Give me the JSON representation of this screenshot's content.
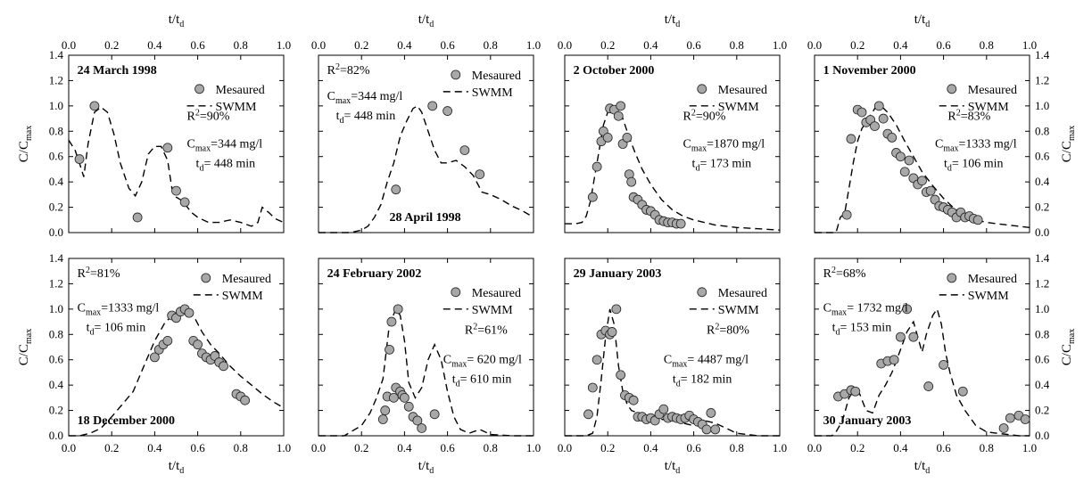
{
  "chart_data": [
    {
      "type": "scatter",
      "title": "24 March 1998",
      "xlabel": "t/t_d",
      "ylabel": "C/C_max",
      "xlim": [
        0,
        1
      ],
      "ylim": [
        0,
        1.4
      ],
      "x_ticks": [
        "0.0",
        "0.2",
        "0.4",
        "0.6",
        "0.8",
        "1.0"
      ],
      "y_ticks": [
        "0.0",
        "0.2",
        "0.4",
        "0.6",
        "0.8",
        "1.0",
        "1.2",
        "1.4"
      ],
      "legend": [
        "Mesaured",
        "SWMM"
      ],
      "legend_position": "top-right",
      "r2": "R²=90%",
      "cmax": "C_max=344 mg/l",
      "td": "t_d= 448 min",
      "series": [
        {
          "name": "Mesaured",
          "x": [
            0.05,
            0.12,
            0.32,
            0.46,
            0.5,
            0.54
          ],
          "y": [
            0.58,
            1.0,
            0.12,
            0.67,
            0.33,
            0.24
          ]
        },
        {
          "name": "SWMM",
          "x": [
            0.0,
            0.03,
            0.05,
            0.07,
            0.09,
            0.12,
            0.15,
            0.18,
            0.21,
            0.24,
            0.28,
            0.31,
            0.34,
            0.37,
            0.4,
            0.43,
            0.46,
            0.48,
            0.5,
            0.53,
            0.57,
            0.6,
            0.65,
            0.7,
            0.75,
            0.8,
            0.85,
            0.88,
            0.9,
            0.93,
            0.96,
            1.0
          ],
          "y": [
            0.73,
            0.65,
            0.55,
            0.44,
            0.7,
            0.95,
            0.99,
            0.95,
            0.78,
            0.55,
            0.35,
            0.29,
            0.4,
            0.62,
            0.68,
            0.68,
            0.57,
            0.35,
            0.28,
            0.25,
            0.16,
            0.12,
            0.08,
            0.08,
            0.1,
            0.08,
            0.05,
            0.08,
            0.2,
            0.16,
            0.11,
            0.08
          ]
        }
      ]
    },
    {
      "type": "scatter",
      "title": "28 April 1998",
      "xlabel": "t/t_d",
      "ylabel": "",
      "xlim": [
        0,
        1
      ],
      "ylim": [
        0,
        1.4
      ],
      "x_ticks": [
        "0.0",
        "0.2",
        "0.4",
        "0.6",
        "0.8",
        "1.0"
      ],
      "y_ticks": [],
      "legend": [
        "Mesaured",
        "SWMM"
      ],
      "legend_position": "top-right",
      "r2": "R²=82%",
      "cmax": "C_max=344 mg/l",
      "td": "t_d= 448 min",
      "series": [
        {
          "name": "Mesaured",
          "x": [
            0.36,
            0.53,
            0.6,
            0.68,
            0.75
          ],
          "y": [
            0.34,
            1.0,
            0.96,
            0.65,
            0.46
          ]
        },
        {
          "name": "SWMM",
          "x": [
            0.0,
            0.15,
            0.2,
            0.23,
            0.26,
            0.29,
            0.32,
            0.35,
            0.38,
            0.41,
            0.44,
            0.46,
            0.48,
            0.51,
            0.54,
            0.57,
            0.6,
            0.64,
            0.68,
            0.72,
            0.76,
            0.8,
            0.85,
            0.9,
            0.95,
            1.0
          ],
          "y": [
            0.0,
            0.0,
            0.02,
            0.05,
            0.12,
            0.22,
            0.4,
            0.55,
            0.76,
            0.88,
            0.98,
            1.0,
            0.95,
            0.8,
            0.65,
            0.55,
            0.55,
            0.57,
            0.52,
            0.45,
            0.32,
            0.3,
            0.26,
            0.21,
            0.17,
            0.12
          ]
        }
      ]
    },
    {
      "type": "scatter",
      "title": "2 October 2000",
      "xlabel": "t/t_d",
      "ylabel": "",
      "xlim": [
        0,
        1
      ],
      "ylim": [
        0,
        1.4
      ],
      "x_ticks": [
        "0.0",
        "0.2",
        "0.4",
        "0.6",
        "0.8",
        "1.0"
      ],
      "y_ticks": [],
      "legend": [
        "Mesaured",
        "SWMM"
      ],
      "legend_position": "top-right",
      "r2": "R²=90%",
      "cmax": "C_max=1870 mg/l",
      "td": "t_d= 173 min",
      "series": [
        {
          "name": "Mesaured",
          "x": [
            0.13,
            0.15,
            0.17,
            0.18,
            0.2,
            0.21,
            0.23,
            0.25,
            0.26,
            0.27,
            0.29,
            0.3,
            0.31,
            0.32,
            0.34,
            0.36,
            0.38,
            0.4,
            0.42,
            0.44,
            0.46,
            0.48,
            0.5,
            0.52,
            0.54
          ],
          "y": [
            0.28,
            0.52,
            0.72,
            0.8,
            0.75,
            0.98,
            0.97,
            0.92,
            1.0,
            0.7,
            0.75,
            0.46,
            0.4,
            0.28,
            0.26,
            0.22,
            0.18,
            0.17,
            0.14,
            0.1,
            0.09,
            0.08,
            0.08,
            0.07,
            0.07
          ]
        },
        {
          "name": "SWMM",
          "x": [
            0.0,
            0.05,
            0.08,
            0.1,
            0.12,
            0.14,
            0.16,
            0.18,
            0.2,
            0.22,
            0.24,
            0.26,
            0.28,
            0.3,
            0.33,
            0.36,
            0.4,
            0.45,
            0.5,
            0.55,
            0.6,
            0.7,
            0.8,
            0.9,
            1.0
          ],
          "y": [
            0.07,
            0.07,
            0.08,
            0.13,
            0.25,
            0.45,
            0.65,
            0.85,
            0.95,
            0.99,
            1.0,
            0.95,
            0.85,
            0.75,
            0.62,
            0.5,
            0.38,
            0.26,
            0.18,
            0.13,
            0.1,
            0.06,
            0.04,
            0.03,
            0.02
          ]
        }
      ]
    },
    {
      "type": "scatter",
      "title": "1 November 2000",
      "xlabel": "t/t_d",
      "ylabel": "C/C_max",
      "xlim": [
        0,
        1
      ],
      "ylim": [
        0,
        1.4
      ],
      "x_ticks": [
        "0.0",
        "0.2",
        "0.4",
        "0.6",
        "0.8",
        "1.0"
      ],
      "y_ticks": [
        "0.0",
        "0.2",
        "0.4",
        "0.6",
        "0.8",
        "1.0",
        "1.2",
        "1.4"
      ],
      "legend": [
        "Mesaured",
        "SWMM"
      ],
      "legend_position": "top-right",
      "r2": "R²=83%",
      "cmax": "C_max=1333 mg/l",
      "td": "t_d= 106 min",
      "series": [
        {
          "name": "Mesaured",
          "x": [
            0.15,
            0.17,
            0.2,
            0.22,
            0.24,
            0.26,
            0.28,
            0.3,
            0.32,
            0.34,
            0.36,
            0.38,
            0.4,
            0.42,
            0.44,
            0.46,
            0.48,
            0.5,
            0.52,
            0.54,
            0.56,
            0.58,
            0.6,
            0.62,
            0.64,
            0.66,
            0.68,
            0.7,
            0.72,
            0.74,
            0.76
          ],
          "y": [
            0.14,
            0.74,
            0.97,
            0.95,
            0.87,
            0.89,
            0.84,
            1.0,
            0.9,
            0.78,
            0.75,
            0.63,
            0.6,
            0.48,
            0.57,
            0.43,
            0.38,
            0.41,
            0.32,
            0.33,
            0.26,
            0.21,
            0.2,
            0.18,
            0.16,
            0.12,
            0.16,
            0.12,
            0.13,
            0.11,
            0.1
          ]
        },
        {
          "name": "SWMM",
          "x": [
            0.0,
            0.1,
            0.12,
            0.14,
            0.16,
            0.18,
            0.2,
            0.22,
            0.25,
            0.28,
            0.31,
            0.34,
            0.38,
            0.42,
            0.46,
            0.5,
            0.55,
            0.6,
            0.65,
            0.7,
            0.75,
            0.8,
            0.85,
            0.9,
            0.95,
            1.0
          ],
          "y": [
            0.0,
            0.0,
            0.12,
            0.15,
            0.35,
            0.55,
            0.72,
            0.82,
            0.9,
            0.98,
            1.0,
            0.95,
            0.85,
            0.72,
            0.6,
            0.48,
            0.37,
            0.27,
            0.19,
            0.14,
            0.1,
            0.08,
            0.07,
            0.06,
            0.05,
            0.04
          ]
        }
      ]
    },
    {
      "type": "scatter",
      "title": "18 December 2000",
      "xlabel": "t/t_d",
      "ylabel": "C/C_max",
      "xlim": [
        0,
        1
      ],
      "ylim": [
        0,
        1.4
      ],
      "x_ticks": [
        "0.0",
        "0.2",
        "0.4",
        "0.6",
        "0.8",
        "1.0"
      ],
      "y_ticks": [
        "0.0",
        "0.2",
        "0.4",
        "0.6",
        "0.8",
        "1.0",
        "1.2",
        "1.4"
      ],
      "legend": [
        "Mesaured",
        "SWMM"
      ],
      "legend_position": "top-right",
      "r2": "R²=81%",
      "cmax": "C_max=1333 mg/l",
      "td": "t_d= 106 min",
      "series": [
        {
          "name": "Mesaured",
          "x": [
            0.4,
            0.42,
            0.44,
            0.46,
            0.48,
            0.5,
            0.52,
            0.54,
            0.56,
            0.58,
            0.6,
            0.62,
            0.64,
            0.66,
            0.68,
            0.7,
            0.72,
            0.78,
            0.8,
            0.82
          ],
          "y": [
            0.62,
            0.68,
            0.72,
            0.75,
            0.95,
            0.93,
            0.98,
            1.0,
            0.97,
            0.75,
            0.72,
            0.65,
            0.62,
            0.6,
            0.63,
            0.58,
            0.55,
            0.33,
            0.31,
            0.28
          ]
        },
        {
          "name": "SWMM",
          "x": [
            0.0,
            0.05,
            0.1,
            0.15,
            0.2,
            0.25,
            0.3,
            0.35,
            0.4,
            0.45,
            0.5,
            0.55,
            0.58,
            0.62,
            0.66,
            0.7,
            0.75,
            0.8,
            0.85,
            0.9,
            0.95,
            1.0
          ],
          "y": [
            0.0,
            0.0,
            0.02,
            0.06,
            0.15,
            0.25,
            0.35,
            0.55,
            0.75,
            0.9,
            0.97,
            0.99,
            0.95,
            0.82,
            0.72,
            0.65,
            0.55,
            0.47,
            0.4,
            0.33,
            0.27,
            0.22
          ]
        }
      ]
    },
    {
      "type": "scatter",
      "title": "24 February 2002",
      "xlabel": "t/t_d",
      "ylabel": "",
      "xlim": [
        0,
        1
      ],
      "ylim": [
        0,
        1.4
      ],
      "x_ticks": [
        "0.0",
        "0.2",
        "0.4",
        "0.6",
        "0.8",
        "1.0"
      ],
      "y_ticks": [],
      "legend": [
        "Mesaured",
        "SWMM"
      ],
      "legend_position": "top-right",
      "r2": "R²=61%",
      "cmax": "C_max= 620 mg/l",
      "td": "t_d= 610 min",
      "series": [
        {
          "name": "Mesaured",
          "x": [
            0.3,
            0.31,
            0.32,
            0.33,
            0.34,
            0.35,
            0.36,
            0.37,
            0.38,
            0.39,
            0.4,
            0.42,
            0.44,
            0.46,
            0.48,
            0.54
          ],
          "y": [
            0.13,
            0.2,
            0.31,
            0.68,
            0.9,
            0.3,
            0.38,
            1.0,
            0.35,
            0.32,
            0.3,
            0.23,
            0.15,
            0.12,
            0.06,
            0.17
          ]
        },
        {
          "name": "SWMM",
          "x": [
            0.0,
            0.12,
            0.15,
            0.2,
            0.24,
            0.27,
            0.3,
            0.33,
            0.36,
            0.38,
            0.4,
            0.42,
            0.45,
            0.48,
            0.51,
            0.54,
            0.57,
            0.6,
            0.63,
            0.66,
            0.7,
            0.75,
            0.8,
            0.9,
            1.0
          ],
          "y": [
            0.0,
            0.0,
            0.03,
            0.08,
            0.18,
            0.3,
            0.45,
            0.88,
            1.0,
            0.95,
            0.75,
            0.42,
            0.3,
            0.38,
            0.6,
            0.72,
            0.6,
            0.35,
            0.15,
            0.05,
            0.02,
            0.05,
            0.01,
            0.0,
            0.0
          ]
        }
      ]
    },
    {
      "type": "scatter",
      "title": "29 January 2003",
      "xlabel": "t/t_d",
      "ylabel": "",
      "xlim": [
        0,
        1
      ],
      "ylim": [
        0,
        1.4
      ],
      "x_ticks": [
        "0.0",
        "0.2",
        "0.4",
        "0.6",
        "0.8",
        "1.0"
      ],
      "y_ticks": [],
      "legend": [
        "Mesaured",
        "SWMM"
      ],
      "legend_position": "top-right",
      "r2": "R²=80%",
      "cmax": "C_max= 4487 mg/l",
      "td": "t_d= 182 min",
      "series": [
        {
          "name": "Mesaured",
          "x": [
            0.11,
            0.13,
            0.15,
            0.17,
            0.19,
            0.21,
            0.22,
            0.24,
            0.26,
            0.28,
            0.3,
            0.32,
            0.34,
            0.36,
            0.38,
            0.4,
            0.42,
            0.44,
            0.46,
            0.48,
            0.5,
            0.52,
            0.54,
            0.56,
            0.58,
            0.6,
            0.62,
            0.64,
            0.66,
            0.68,
            0.7
          ],
          "y": [
            0.17,
            0.38,
            0.6,
            0.8,
            0.83,
            0.8,
            0.82,
            1.0,
            0.48,
            0.32,
            0.3,
            0.28,
            0.15,
            0.15,
            0.13,
            0.14,
            0.12,
            0.17,
            0.21,
            0.14,
            0.15,
            0.14,
            0.13,
            0.14,
            0.16,
            0.13,
            0.11,
            0.09,
            0.05,
            0.18,
            0.05
          ]
        },
        {
          "name": "SWMM",
          "x": [
            0.0,
            0.1,
            0.13,
            0.15,
            0.17,
            0.19,
            0.21,
            0.23,
            0.25,
            0.27,
            0.29,
            0.31,
            0.34,
            0.37,
            0.4,
            0.45,
            0.5,
            0.55,
            0.6,
            0.65,
            0.7,
            0.75,
            0.8,
            0.9,
            1.0
          ],
          "y": [
            0.0,
            0.0,
            0.02,
            0.15,
            0.45,
            0.78,
            1.0,
            0.88,
            0.55,
            0.35,
            0.25,
            0.2,
            0.18,
            0.16,
            0.15,
            0.13,
            0.12,
            0.1,
            0.08,
            0.12,
            0.1,
            0.06,
            0.02,
            0.0,
            0.0
          ]
        }
      ]
    },
    {
      "type": "scatter",
      "title": "30 January 2003",
      "xlabel": "t/t_d",
      "ylabel": "C/C_max",
      "xlim": [
        0,
        1
      ],
      "ylim": [
        0,
        1.4
      ],
      "x_ticks": [
        "0.0",
        "0.2",
        "0.4",
        "0.6",
        "0.8",
        "1.0"
      ],
      "y_ticks": [
        "0.0",
        "0.2",
        "0.4",
        "0.6",
        "0.8",
        "1.0",
        "1.2",
        "1.4"
      ],
      "legend": [
        "Mesaured",
        "SWMM"
      ],
      "legend_position": "top-right",
      "r2": "R²=68%",
      "cmax": "C_max= 1732 mg/l",
      "td": "t_d= 153 min",
      "series": [
        {
          "name": "Mesaured",
          "x": [
            0.11,
            0.14,
            0.17,
            0.19,
            0.31,
            0.34,
            0.37,
            0.4,
            0.43,
            0.46,
            0.53,
            0.6,
            0.69,
            0.88,
            0.91,
            0.95,
            0.98
          ],
          "y": [
            0.31,
            0.33,
            0.36,
            0.35,
            0.57,
            0.59,
            0.6,
            0.78,
            1.0,
            0.78,
            0.39,
            0.56,
            0.35,
            0.06,
            0.14,
            0.16,
            0.13
          ]
        },
        {
          "name": "SWMM",
          "x": [
            0.0,
            0.08,
            0.1,
            0.13,
            0.16,
            0.18,
            0.21,
            0.24,
            0.27,
            0.3,
            0.33,
            0.36,
            0.4,
            0.43,
            0.46,
            0.48,
            0.5,
            0.52,
            0.55,
            0.57,
            0.59,
            0.61,
            0.63,
            0.66,
            0.7,
            0.75,
            0.8,
            0.85,
            0.9,
            0.95,
            1.0
          ],
          "y": [
            0.0,
            0.0,
            0.03,
            0.12,
            0.3,
            0.35,
            0.33,
            0.2,
            0.18,
            0.32,
            0.4,
            0.5,
            0.68,
            0.82,
            0.9,
            0.78,
            0.66,
            0.8,
            0.95,
            1.0,
            0.88,
            0.65,
            0.5,
            0.32,
            0.2,
            0.08,
            0.03,
            0.02,
            0.01,
            0.0,
            0.0
          ]
        }
      ]
    }
  ]
}
